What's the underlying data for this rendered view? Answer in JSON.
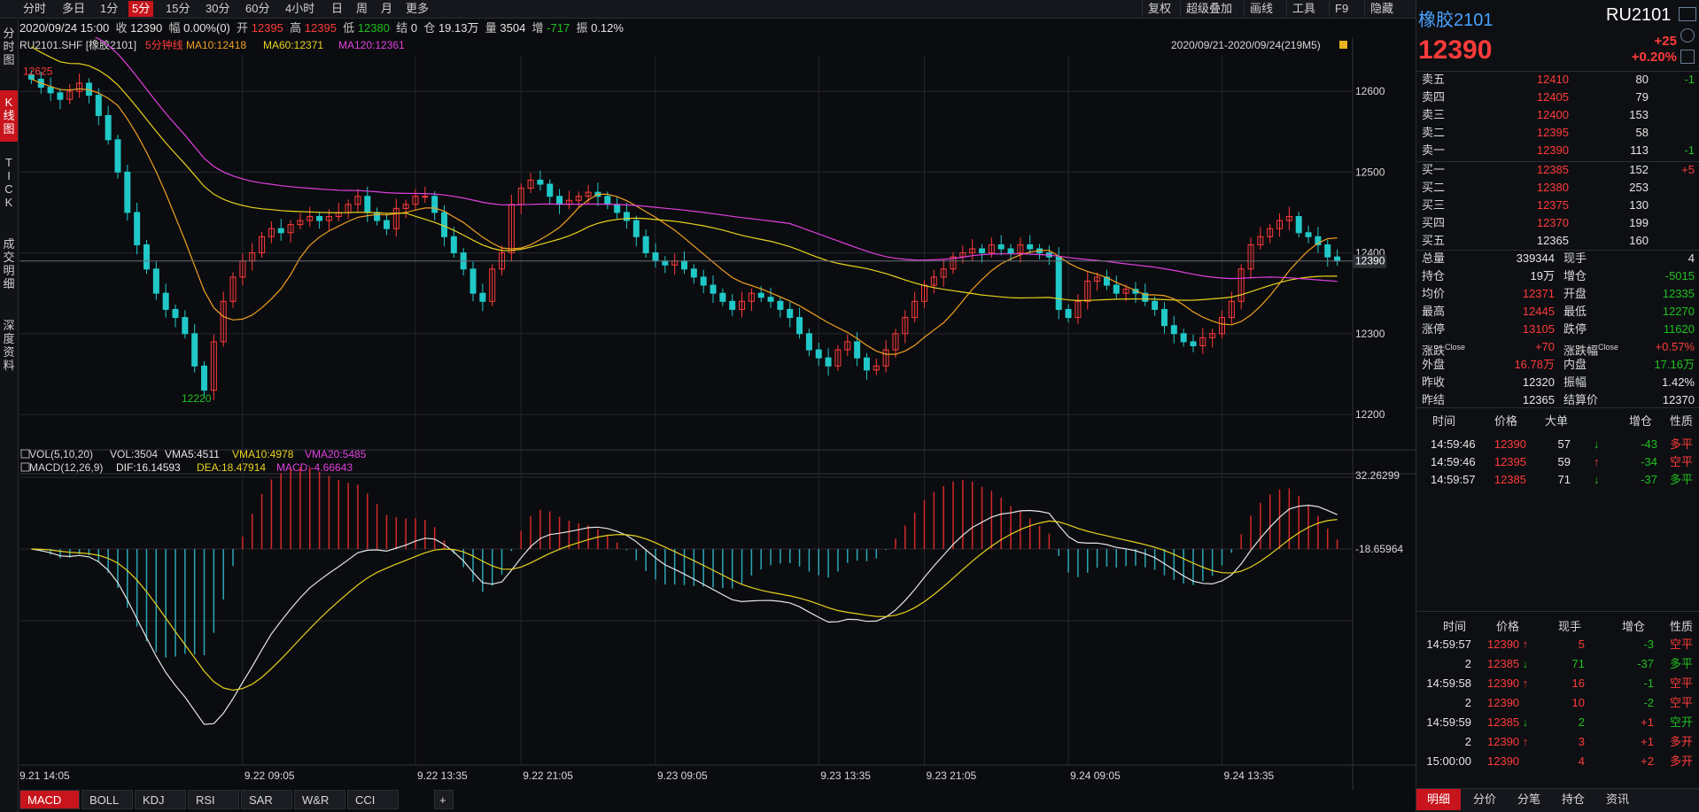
{
  "toolbar": {
    "tabs": [
      "分时",
      "多日",
      "1分",
      "5分",
      "15分",
      "30分",
      "60分",
      "4小时",
      "日",
      "周",
      "月",
      "更多"
    ],
    "active_tab": "5分",
    "right_items": [
      "复权",
      "超级叠加",
      "画线",
      "工具",
      "F9",
      "隐藏"
    ]
  },
  "info": {
    "datetime": "2020/09/24 15:00",
    "close_label": "收",
    "close": "12390",
    "pct_label": "幅",
    "pct": "0.00%(0)",
    "open_label": "开",
    "open": "12395",
    "high_label": "高",
    "high": "12395",
    "low_label": "低",
    "low": "12380",
    "settle_label": "结",
    "settle": "0",
    "oi_label": "仓",
    "oi": "19.13万",
    "vol_label": "量",
    "vol": "3504",
    "inc_label": "增",
    "inc": "-717",
    "amp_label": "振",
    "amp": "0.12%"
  },
  "left_tabs": [
    "分时图",
    "K线图",
    "TICK",
    "成交明细",
    "深度资料"
  ],
  "chart_header": {
    "symbol": "RU2101.SHF [橡胶2101]",
    "period": "5分钟线",
    "ma10": "MA10:12418",
    "ma60": "MA60:12371",
    "ma120": "MA120:12361",
    "range": "2020/09/21-2020/09/24(219M5)"
  },
  "chart_data": [
    {
      "type": "candlestick",
      "y_ticks": [
        12600,
        12500,
        12400,
        12300,
        12200
      ],
      "ylim": [
        12165,
        12645
      ],
      "last_price_tag": "12390",
      "high_annotation": "12625",
      "low_annotation": "12220",
      "close_series": [
        12615,
        12605,
        12598,
        12590,
        12600,
        12610,
        12595,
        12570,
        12540,
        12500,
        12450,
        12410,
        12380,
        12350,
        12330,
        12320,
        12300,
        12260,
        12230,
        12290,
        12340,
        12370,
        12390,
        12400,
        12420,
        12430,
        12425,
        12435,
        12440,
        12445,
        12440,
        12445,
        12450,
        12460,
        12470,
        12450,
        12440,
        12430,
        12455,
        12460,
        12470,
        12470,
        12450,
        12420,
        12400,
        12380,
        12350,
        12340,
        12380,
        12400,
        12460,
        12480,
        12490,
        12485,
        12470,
        12460,
        12465,
        12470,
        12475,
        12470,
        12460,
        12450,
        12440,
        12420,
        12400,
        12390,
        12385,
        12390,
        12380,
        12370,
        12360,
        12350,
        12340,
        12330,
        12340,
        12350,
        12345,
        12340,
        12330,
        12320,
        12300,
        12280,
        12270,
        12260,
        12280,
        12290,
        12270,
        12255,
        12260,
        12280,
        12300,
        12320,
        12340,
        12360,
        12370,
        12380,
        12395,
        12400,
        12405,
        12400,
        12410,
        12405,
        12400,
        12410,
        12405,
        12400,
        12395,
        12330,
        12320,
        12340,
        12365,
        12370,
        12360,
        12350,
        12355,
        12350,
        12340,
        12330,
        12310,
        12300,
        12290,
        12285,
        12295,
        12300,
        12320,
        12340,
        12380,
        12410,
        12420,
        12430,
        12440,
        12445,
        12425,
        12420,
        12410,
        12395,
        12390
      ]
    },
    {
      "type": "bar",
      "title": "VOL(5,10,20)",
      "values": [
        "VOL:3504",
        "VMA5:4511",
        "VMA10:4978",
        "VMA20:5485"
      ]
    },
    {
      "type": "bar+line",
      "title": "MACD(12,26,9)",
      "values": [
        "DIF:16.14593",
        "DEA:18.47914",
        "MACD:-4.66643"
      ],
      "y_ticks": [
        "32.26299",
        "-18.65964"
      ]
    }
  ],
  "x_labels": [
    "9.21 14:05",
    "9.22 09:05",
    "9.22 13:35",
    "9.22 21:05",
    "9.23 09:05",
    "9.23 13:35",
    "9.23 21:05",
    "9.24 09:05",
    "9.24 13:35"
  ],
  "bottom_tabs": [
    "MACD",
    "BOLL",
    "KDJ",
    "RSI",
    "SAR",
    "W&R",
    "CCI"
  ],
  "bottom_add": "+",
  "right": {
    "name": "橡胶2101",
    "code": "RU2101",
    "price": "12390",
    "change": "+25",
    "change_pct": "+0.20%",
    "asks": [
      {
        "label": "卖五",
        "price": "12410",
        "vol": "80",
        "chg": "-1"
      },
      {
        "label": "卖四",
        "price": "12405",
        "vol": "79",
        "chg": ""
      },
      {
        "label": "卖三",
        "price": "12400",
        "vol": "153",
        "chg": ""
      },
      {
        "label": "卖二",
        "price": "12395",
        "vol": "58",
        "chg": ""
      },
      {
        "label": "卖一",
        "price": "12390",
        "vol": "113",
        "chg": "-1"
      }
    ],
    "bids": [
      {
        "label": "买一",
        "price": "12385",
        "vol": "152",
        "chg": "+5"
      },
      {
        "label": "买二",
        "price": "12380",
        "vol": "253",
        "chg": ""
      },
      {
        "label": "买三",
        "price": "12375",
        "vol": "130",
        "chg": ""
      },
      {
        "label": "买四",
        "price": "12370",
        "vol": "199",
        "chg": ""
      },
      {
        "label": "买五",
        "price": "12365",
        "vol": "160",
        "chg": ""
      }
    ],
    "stats": [
      {
        "l1": "总量",
        "v1": "339344",
        "c1": "white",
        "l2": "现手",
        "v2": "4",
        "c2": "white"
      },
      {
        "l1": "持仓",
        "v1": "19万",
        "c1": "white",
        "l2": "增仓",
        "v2": "-5015",
        "c2": "green"
      },
      {
        "l1": "均价",
        "v1": "12371",
        "c1": "red",
        "l2": "开盘",
        "v2": "12335",
        "c2": "green"
      },
      {
        "l1": "最高",
        "v1": "12445",
        "c1": "red",
        "l2": "最低",
        "v2": "12270",
        "c2": "green"
      },
      {
        "l1": "涨停",
        "v1": "13105",
        "c1": "red",
        "l2": "跌停",
        "v2": "11620",
        "c2": "green"
      },
      {
        "l1": "涨跌",
        "l1sup": "Close",
        "v1": "+70",
        "c1": "red",
        "l2": "涨跌幅",
        "l2sup": "Close",
        "v2": "+0.57%",
        "c2": "red"
      },
      {
        "l1": "外盘",
        "v1": "16.78万",
        "c1": "red",
        "l2": "内盘",
        "v2": "17.16万",
        "c2": "green"
      },
      {
        "l1": "昨收",
        "v1": "12320",
        "c1": "white",
        "l2": "振幅",
        "v2": "1.42%",
        "c2": "white"
      },
      {
        "l1": "昨结",
        "v1": "12365",
        "c1": "white",
        "l2": "结算价",
        "v2": "12370",
        "c2": "white"
      }
    ],
    "big_headers": [
      "时间",
      "价格",
      "大单",
      "增仓",
      "性质"
    ],
    "big_trades": [
      {
        "time": "14:59:46",
        "price": "12390",
        "qty": "57",
        "dir": "down",
        "oi": "-43",
        "nature": "多平",
        "nc": "red"
      },
      {
        "time": "14:59:46",
        "price": "12395",
        "qty": "59",
        "dir": "up",
        "oi": "-34",
        "nature": "空平",
        "nc": "red"
      },
      {
        "time": "14:59:57",
        "price": "12385",
        "qty": "71",
        "dir": "down",
        "oi": "-37",
        "nature": "多平",
        "nc": "green"
      }
    ],
    "tick_headers": [
      "时间",
      "价格",
      "现手",
      "增仓",
      "性质"
    ],
    "ticks": [
      {
        "time": "14:59:57",
        "price": "12390",
        "dir": "up",
        "qty": "5",
        "oi": "-3",
        "nature": "空平",
        "qc": "red",
        "nc": "red"
      },
      {
        "time": "2",
        "price": "12385",
        "dir": "down",
        "qty": "71",
        "oi": "-37",
        "nature": "多平",
        "qc": "green",
        "nc": "green"
      },
      {
        "time": "14:59:58",
        "price": "12390",
        "dir": "up",
        "qty": "16",
        "oi": "-1",
        "nature": "空平",
        "qc": "red",
        "nc": "red"
      },
      {
        "time": "2",
        "price": "12390",
        "dir": "",
        "qty": "10",
        "oi": "-2",
        "nature": "空平",
        "qc": "red",
        "nc": "red"
      },
      {
        "time": "14:59:59",
        "price": "12385",
        "dir": "down",
        "qty": "2",
        "oi": "+1",
        "nature": "空开",
        "qc": "green",
        "nc": "green"
      },
      {
        "time": "2",
        "price": "12390",
        "dir": "up",
        "qty": "3",
        "oi": "+1",
        "nature": "多开",
        "qc": "red",
        "nc": "red"
      },
      {
        "time": "15:00:00",
        "price": "12390",
        "dir": "",
        "qty": "4",
        "oi": "+2",
        "nature": "多开",
        "qc": "red",
        "nc": "red"
      }
    ],
    "bottom_tabs": [
      "明细",
      "分价",
      "分笔",
      "持仓",
      "资讯"
    ]
  },
  "colors": {
    "up": "#ff3b3b",
    "down": "#20c8c8",
    "accent": "#c8141c",
    "ma10": "#f0a020",
    "ma60": "#e8d21d",
    "ma120": "#e040e0",
    "dif": "#e6e6e6",
    "dea": "#e8d21d"
  }
}
